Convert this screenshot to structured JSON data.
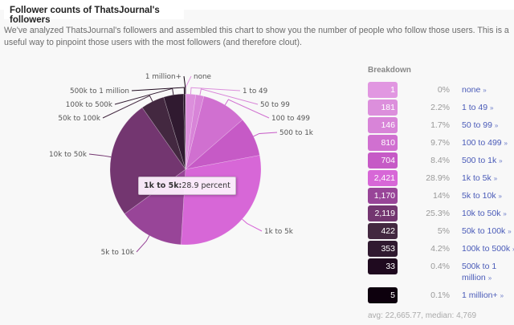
{
  "header": {
    "title": "Follower counts of ThatsJournal's followers"
  },
  "intro": "We've analyzed ThatsJournal's followers and assembled this chart to show you the number of people who follow those users. This is a useful way to pinpoint those users with the most followers (and therefore clout).",
  "tooltip": {
    "label": "1k to 5k:",
    "value": "28.9 percent"
  },
  "breakdown": {
    "title": "Breakdown",
    "rows": [
      {
        "count": "1",
        "pct": "0%",
        "label": "none",
        "color": "#e197e1"
      },
      {
        "count": "181",
        "pct": "2.2%",
        "label": "1 to 49",
        "color": "#dc8fdc"
      },
      {
        "count": "146",
        "pct": "1.7%",
        "label": "50 to 99",
        "color": "#d884d8"
      },
      {
        "count": "810",
        "pct": "9.7%",
        "label": "100 to 499",
        "color": "#d070d0"
      },
      {
        "count": "704",
        "pct": "8.4%",
        "label": "500 to 1k",
        "color": "#c65ac6"
      },
      {
        "count": "2,421",
        "pct": "28.9%",
        "label": "1k to 5k",
        "color": "#d767d7"
      },
      {
        "count": "1,170",
        "pct": "14%",
        "label": "5k to 10k",
        "color": "#984598"
      },
      {
        "count": "2,119",
        "pct": "25.3%",
        "label": "10k to 50k",
        "color": "#733670"
      },
      {
        "count": "422",
        "pct": "5%",
        "label": "50k to 100k",
        "color": "#432840"
      },
      {
        "count": "353",
        "pct": "4.2%",
        "label": "100k to 500k",
        "color": "#301a30"
      },
      {
        "count": "33",
        "pct": "0.4%",
        "label": "500k to 1 million",
        "color": "#1f0a1f"
      },
      {
        "count": "5",
        "pct": "0.1%",
        "label": "1 million+",
        "color": "#0d000d"
      }
    ],
    "link_suffix": "»",
    "summary": "avg: 22,665.77, median: 4,769"
  },
  "chart_data": {
    "type": "pie",
    "title": "Follower counts of ThatsJournal's followers",
    "categories": [
      "none",
      "1 to 49",
      "50 to 99",
      "100 to 499",
      "500 to 1k",
      "1k to 5k",
      "5k to 10k",
      "10k to 50k",
      "50k to 100k",
      "100k to 500k",
      "500k to 1 million",
      "1 million+"
    ],
    "values": [
      1,
      181,
      146,
      810,
      704,
      2421,
      1170,
      2119,
      422,
      353,
      33,
      5
    ],
    "percents": [
      0,
      2.2,
      1.7,
      9.7,
      8.4,
      28.9,
      14,
      25.3,
      5,
      4.2,
      0.4,
      0.1
    ],
    "colors": [
      "#e197e1",
      "#dc8fdc",
      "#d884d8",
      "#d070d0",
      "#c65ac6",
      "#d767d7",
      "#984598",
      "#733670",
      "#432840",
      "#301a30",
      "#1f0a1f",
      "#0d000d"
    ],
    "highlighted": "1k to 5k",
    "stats": {
      "avg": 22665.77,
      "median": 4769
    }
  }
}
